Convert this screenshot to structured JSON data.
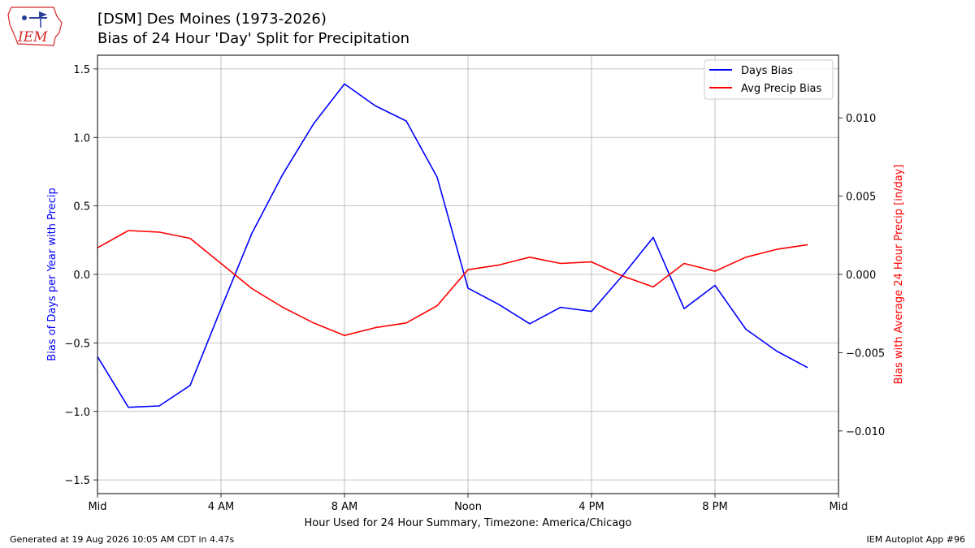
{
  "header": {
    "title_line1": "[DSM] Des Moines (1973-2026)",
    "title_line2": "Bias of 24 Hour 'Day' Split for Precipitation"
  },
  "footer": {
    "generated": "Generated at 19 Aug 2026 10:05 AM CDT in 4.47s",
    "app": "IEM Autoplot App #96"
  },
  "logo": {
    "text": "IEM",
    "color": "#d62728"
  },
  "chart_data": {
    "type": "line",
    "xlabel": "Hour Used for 24 Hour Summary, Timezone: America/Chicago",
    "ylabel_left": "Bias of Days per Year with Precip",
    "ylabel_right": "Bias with Average 24 Hour Precip [in/day]",
    "xlim": [
      0,
      24
    ],
    "ylim_left": [
      -1.6,
      1.6
    ],
    "ylim_right": [
      -0.014,
      0.014
    ],
    "x_ticks": [
      {
        "value": 0,
        "label": "Mid"
      },
      {
        "value": 4,
        "label": "4 AM"
      },
      {
        "value": 8,
        "label": "8 AM"
      },
      {
        "value": 12,
        "label": "Noon"
      },
      {
        "value": 16,
        "label": "4 PM"
      },
      {
        "value": 20,
        "label": "8 PM"
      },
      {
        "value": 24,
        "label": "Mid"
      }
    ],
    "y_ticks_left": [
      {
        "value": 1.5,
        "label": "1.5"
      },
      {
        "value": 1.0,
        "label": "1.0"
      },
      {
        "value": 0.5,
        "label": "0.5"
      },
      {
        "value": 0.0,
        "label": "0.0"
      },
      {
        "value": -0.5,
        "label": "−0.5"
      },
      {
        "value": -1.0,
        "label": "−1.0"
      },
      {
        "value": -1.5,
        "label": "−1.5"
      }
    ],
    "y_ticks_right": [
      {
        "value": 0.01,
        "label": "0.010"
      },
      {
        "value": 0.005,
        "label": "0.005"
      },
      {
        "value": 0.0,
        "label": "0.000"
      },
      {
        "value": -0.005,
        "label": "−0.005"
      },
      {
        "value": -0.01,
        "label": "−0.010"
      }
    ],
    "grid": true,
    "legend_position": "top-right",
    "x": [
      0,
      1,
      2,
      3,
      4,
      5,
      6,
      7,
      8,
      9,
      10,
      11,
      12,
      13,
      14,
      15,
      16,
      17,
      18,
      19,
      20,
      21,
      22,
      23
    ],
    "series": [
      {
        "name": "Days Bias",
        "axis": "left",
        "color": "#0000ff",
        "values": [
          -0.6,
          -0.97,
          -0.96,
          -0.81,
          -0.25,
          0.3,
          0.73,
          1.1,
          1.39,
          1.23,
          1.12,
          0.71,
          -0.1,
          -0.22,
          -0.36,
          -0.24,
          -0.27,
          -0.01,
          0.27,
          -0.25,
          -0.08,
          -0.4,
          -0.56,
          -0.68
        ]
      },
      {
        "name": "Avg Precip Bias",
        "axis": "right",
        "color": "#ff0000",
        "values": [
          0.0017,
          0.0028,
          0.0027,
          0.0023,
          0.0007,
          -0.0009,
          -0.0021,
          -0.0031,
          -0.0039,
          -0.0034,
          -0.0031,
          -0.002,
          0.0003,
          0.0006,
          0.0011,
          0.0007,
          0.0008,
          -0.0001,
          -0.0008,
          0.0007,
          0.0002,
          0.0011,
          0.0016,
          0.0019
        ]
      }
    ]
  }
}
